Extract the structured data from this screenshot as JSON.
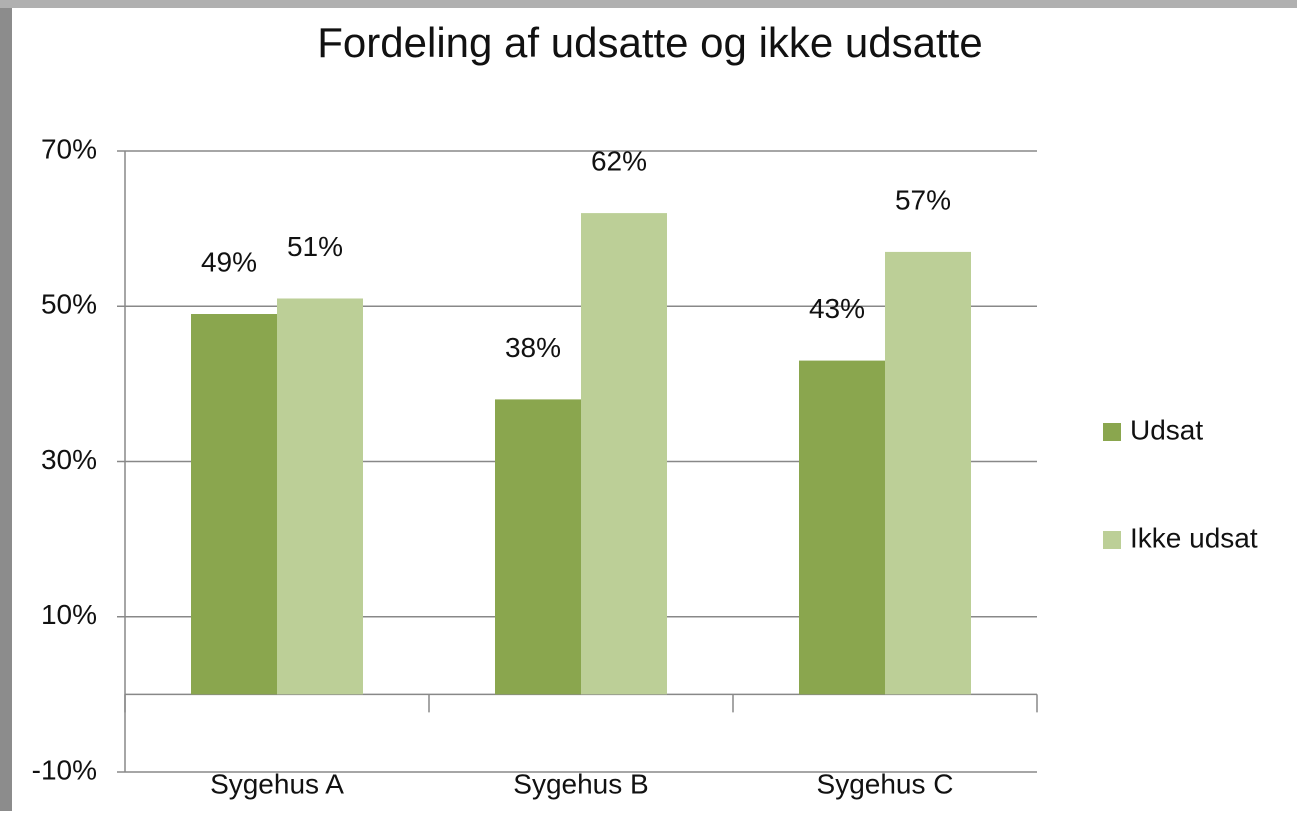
{
  "chart_data": {
    "type": "bar",
    "title": "Fordeling af udsatte og ikke udsatte",
    "categories": [
      "Sygehus A",
      "Sygehus B",
      "Sygehus C"
    ],
    "series": [
      {
        "name": "Udsat",
        "color": "#8aa64e",
        "values": [
          49,
          38,
          43
        ],
        "value_labels": [
          "49%",
          "38%",
          "43%"
        ]
      },
      {
        "name": "Ikke udsat",
        "color": "#bccf97",
        "values": [
          51,
          62,
          57
        ],
        "value_labels": [
          "51%",
          "62%",
          "57%"
        ]
      }
    ],
    "ylim": [
      -10,
      70
    ],
    "yticks": [
      {
        "value": -10,
        "label": "-10%"
      },
      {
        "value": 10,
        "label": "10%"
      },
      {
        "value": 30,
        "label": "30%"
      },
      {
        "value": 50,
        "label": "50%"
      },
      {
        "value": 70,
        "label": "70%"
      }
    ],
    "grid": true,
    "legend": "right"
  }
}
